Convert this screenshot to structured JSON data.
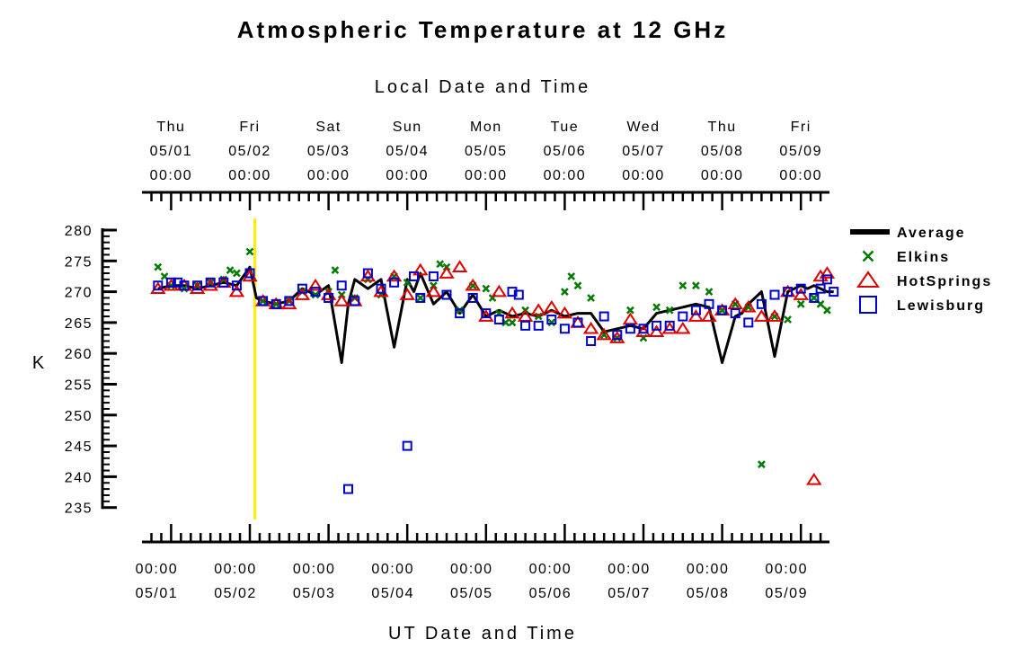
{
  "chart_data": {
    "type": "scatter",
    "title": "Atmospheric Temperature at 12 GHz",
    "top_axis_label": "Local Date and Time",
    "bottom_axis_label": "UT Date and Time",
    "ylabel": "K",
    "ylim": [
      235,
      280
    ],
    "y_ticks": [
      280,
      275,
      270,
      265,
      260,
      255,
      250,
      245,
      240,
      235
    ],
    "x_range_days": [
      "05/01",
      "05/09"
    ],
    "top_ticks": [
      {
        "day": "Thu",
        "date": "05/01",
        "time": "00:00"
      },
      {
        "day": "Fri",
        "date": "05/02",
        "time": "00:00"
      },
      {
        "day": "Sat",
        "date": "05/03",
        "time": "00:00"
      },
      {
        "day": "Sun",
        "date": "05/04",
        "time": "00:00"
      },
      {
        "day": "Mon",
        "date": "05/05",
        "time": "00:00"
      },
      {
        "day": "Tue",
        "date": "05/06",
        "time": "00:00"
      },
      {
        "day": "Wed",
        "date": "05/07",
        "time": "00:00"
      },
      {
        "day": "Thu",
        "date": "05/08",
        "time": "00:00"
      },
      {
        "day": "Fri",
        "date": "05/09",
        "time": "00:00"
      }
    ],
    "bottom_ticks": [
      {
        "time": "00:00",
        "date": "05/01"
      },
      {
        "time": "00:00",
        "date": "05/02"
      },
      {
        "time": "00:00",
        "date": "05/03"
      },
      {
        "time": "00:00",
        "date": "05/04"
      },
      {
        "time": "00:00",
        "date": "05/05"
      },
      {
        "time": "00:00",
        "date": "05/06"
      },
      {
        "time": "00:00",
        "date": "05/07"
      },
      {
        "time": "00:00",
        "date": "05/08"
      },
      {
        "time": "00:00",
        "date": "05/09"
      }
    ],
    "marker_line": {
      "x": "05/02 01:30",
      "color": "#ffee00"
    },
    "legend_position": "right",
    "series": [
      {
        "name": "Average",
        "style": "line",
        "color": "#000000",
        "x": [
          "04/30 20:00",
          "05/01 00:00",
          "05/01 04:00",
          "05/01 08:00",
          "05/01 12:00",
          "05/01 16:00",
          "05/01 20:00",
          "05/02 00:00",
          "05/02 02:00",
          "05/02 04:00",
          "05/02 08:00",
          "05/02 12:00",
          "05/02 16:00",
          "05/02 20:00",
          "05/03 00:00",
          "05/03 04:00",
          "05/03 06:00",
          "05/03 08:00",
          "05/03 12:00",
          "05/03 16:00",
          "05/03 20:00",
          "05/04 00:00",
          "05/04 02:00",
          "05/04 04:00",
          "05/04 08:00",
          "05/04 12:00",
          "05/04 16:00",
          "05/04 20:00",
          "05/05 00:00",
          "05/05 04:00",
          "05/05 08:00",
          "05/05 12:00",
          "05/05 16:00",
          "05/05 20:00",
          "05/06 00:00",
          "05/06 04:00",
          "05/06 08:00",
          "05/06 12:00",
          "05/06 16:00",
          "05/06 20:00",
          "05/07 00:00",
          "05/07 04:00",
          "05/07 08:00",
          "05/07 12:00",
          "05/07 16:00",
          "05/07 20:00",
          "05/08 00:00",
          "05/08 04:00",
          "05/08 06:00",
          "05/08 08:00",
          "05/08 12:00",
          "05/08 16:00",
          "05/08 20:00",
          "05/09 00:00",
          "05/09 02:00",
          "05/09 04:00",
          "05/09 08:00",
          "05/09 10:00"
        ],
        "y": [
          270.5,
          271,
          271,
          270.5,
          271,
          271.5,
          271,
          274,
          269,
          268.5,
          268,
          268.5,
          270.5,
          269.5,
          271,
          258.5,
          268,
          272,
          270.5,
          272,
          261,
          272,
          270,
          273,
          268,
          270,
          266.5,
          269.5,
          266,
          267,
          266,
          266.5,
          266,
          267,
          266,
          266.5,
          266.5,
          263.5,
          264,
          264.5,
          264,
          266.5,
          267,
          267.5,
          268,
          267.5,
          258.5,
          266,
          266.5,
          268,
          270,
          259.5,
          270,
          271,
          270.5,
          271,
          270,
          270
        ]
      },
      {
        "name": "Elkins",
        "style": "x",
        "color": "#007a00",
        "x": [
          "04/30 20:00",
          "04/30 22:00",
          "05/01 00:00",
          "05/01 04:00",
          "05/01 08:00",
          "05/01 12:00",
          "05/01 16:00",
          "05/01 18:00",
          "05/01 20:00",
          "05/02 00:00",
          "05/02 04:00",
          "05/02 08:00",
          "05/02 12:00",
          "05/02 16:00",
          "05/02 20:00",
          "05/03 00:00",
          "05/03 02:00",
          "05/03 04:00",
          "05/03 08:00",
          "05/03 12:00",
          "05/03 16:00",
          "05/03 20:00",
          "05/04 00:00",
          "05/04 04:00",
          "05/04 08:00",
          "05/04 10:00",
          "05/04 12:00",
          "05/04 16:00",
          "05/04 20:00",
          "05/05 00:00",
          "05/05 02:00",
          "05/05 04:00",
          "05/05 06:00",
          "05/05 08:00",
          "05/05 12:00",
          "05/05 16:00",
          "05/05 20:00",
          "05/06 00:00",
          "05/06 02:00",
          "05/06 04:00",
          "05/06 08:00",
          "05/06 12:00",
          "05/06 16:00",
          "05/06 20:00",
          "05/07 00:00",
          "05/07 04:00",
          "05/07 08:00",
          "05/07 12:00",
          "05/07 16:00",
          "05/07 20:00",
          "05/08 00:00",
          "05/08 04:00",
          "05/08 08:00",
          "05/08 12:00",
          "05/08 16:00",
          "05/08 20:00",
          "05/09 00:00",
          "05/09 04:00",
          "05/09 06:00",
          "05/09 08:00"
        ],
        "y": [
          274,
          272.5,
          271,
          270.5,
          271,
          271.5,
          272,
          273.5,
          273,
          276.5,
          268.5,
          268,
          268.5,
          270,
          269.5,
          270,
          273.5,
          269.5,
          269,
          272,
          269.5,
          272.5,
          271.5,
          269,
          271,
          274.5,
          274,
          267,
          271,
          270.5,
          269,
          266.5,
          265,
          265,
          267,
          266,
          265,
          270,
          272.5,
          271,
          269,
          263,
          262.5,
          267,
          262.5,
          267.5,
          267,
          271,
          271,
          270,
          267,
          268,
          267.5,
          242,
          266,
          265.5,
          268,
          269,
          268,
          267
        ]
      },
      {
        "name": "HotSprings",
        "style": "triangle",
        "color": "#dd0000",
        "x": [
          "04/30 20:00",
          "05/01 00:00",
          "05/01 04:00",
          "05/01 08:00",
          "05/01 12:00",
          "05/01 16:00",
          "05/01 20:00",
          "05/02 00:00",
          "05/02 04:00",
          "05/02 08:00",
          "05/02 12:00",
          "05/02 16:00",
          "05/02 20:00",
          "05/03 00:00",
          "05/03 04:00",
          "05/03 08:00",
          "05/03 12:00",
          "05/03 16:00",
          "05/03 20:00",
          "05/04 00:00",
          "05/04 04:00",
          "05/04 08:00",
          "05/04 12:00",
          "05/04 16:00",
          "05/04 20:00",
          "05/05 00:00",
          "05/05 04:00",
          "05/05 08:00",
          "05/05 12:00",
          "05/05 16:00",
          "05/05 20:00",
          "05/06 00:00",
          "05/06 04:00",
          "05/06 08:00",
          "05/06 12:00",
          "05/06 16:00",
          "05/06 20:00",
          "05/07 00:00",
          "05/07 04:00",
          "05/07 08:00",
          "05/07 12:00",
          "05/07 16:00",
          "05/07 20:00",
          "05/08 00:00",
          "05/08 04:00",
          "05/08 08:00",
          "05/08 12:00",
          "05/08 16:00",
          "05/08 20:00",
          "05/09 00:00",
          "05/09 04:00",
          "05/09 06:00",
          "05/09 08:00"
        ],
        "y": [
          270.5,
          271,
          271,
          270.5,
          271,
          271.5,
          270,
          272.5,
          268.5,
          268,
          268,
          269.5,
          271,
          269.5,
          268.5,
          268.5,
          272.5,
          270,
          272.5,
          269.5,
          273.5,
          270,
          273,
          274,
          271,
          266,
          270,
          266.5,
          266,
          267,
          267.5,
          266.5,
          265,
          264,
          263,
          262.5,
          265.5,
          263.5,
          263.5,
          264,
          264,
          266,
          266,
          267,
          268,
          267.5,
          266,
          266,
          270,
          269.5,
          239.5,
          272.5,
          273
        ]
      },
      {
        "name": "Lewisburg",
        "style": "square",
        "color": "#0000cc",
        "x": [
          "04/30 20:00",
          "05/01 00:00",
          "05/01 02:00",
          "05/01 04:00",
          "05/01 08:00",
          "05/01 12:00",
          "05/01 16:00",
          "05/01 20:00",
          "05/02 00:00",
          "05/02 04:00",
          "05/02 08:00",
          "05/02 12:00",
          "05/02 16:00",
          "05/02 20:00",
          "05/03 00:00",
          "05/03 04:00",
          "05/03 06:00",
          "05/03 08:00",
          "05/03 12:00",
          "05/03 16:00",
          "05/03 20:00",
          "05/04 00:00",
          "05/04 02:00",
          "05/04 04:00",
          "05/04 08:00",
          "05/04 12:00",
          "05/04 16:00",
          "05/04 20:00",
          "05/05 00:00",
          "05/05 04:00",
          "05/05 08:00",
          "05/05 10:00",
          "05/05 12:00",
          "05/05 16:00",
          "05/05 20:00",
          "05/06 00:00",
          "05/06 04:00",
          "05/06 08:00",
          "05/06 12:00",
          "05/06 16:00",
          "05/06 20:00",
          "05/07 00:00",
          "05/07 04:00",
          "05/07 08:00",
          "05/07 12:00",
          "05/07 16:00",
          "05/07 20:00",
          "05/08 00:00",
          "05/08 04:00",
          "05/08 08:00",
          "05/08 12:00",
          "05/08 16:00",
          "05/08 20:00",
          "05/09 00:00",
          "05/09 04:00",
          "05/09 06:00",
          "05/09 08:00",
          "05/09 10:00"
        ],
        "y": [
          271,
          271.5,
          271.5,
          271,
          271,
          271.5,
          271.5,
          271,
          273,
          268.5,
          268,
          268.5,
          270.5,
          270,
          269,
          271,
          238,
          268.5,
          273,
          270.5,
          271.5,
          245,
          272.5,
          269,
          272.5,
          269.5,
          266.5,
          269,
          266.5,
          265.5,
          270,
          269.5,
          264.5,
          264.5,
          265.5,
          264,
          265,
          262,
          266,
          263,
          264,
          264,
          264.5,
          264.5,
          266,
          267,
          268,
          267,
          266.5,
          265,
          268,
          269.5,
          270,
          270.5,
          269,
          270.5,
          272,
          270
        ]
      }
    ]
  },
  "legend": {
    "items": [
      {
        "label": "Average",
        "symbol": "line",
        "color": "#000000"
      },
      {
        "label": "Elkins",
        "symbol": "x",
        "color": "#007a00"
      },
      {
        "label": "HotSprings",
        "symbol": "triangle",
        "color": "#dd0000"
      },
      {
        "label": "Lewisburg",
        "symbol": "square",
        "color": "#0000cc"
      }
    ]
  }
}
